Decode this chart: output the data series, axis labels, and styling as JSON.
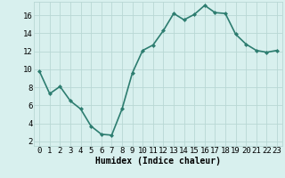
{
  "x": [
    0,
    1,
    2,
    3,
    4,
    5,
    6,
    7,
    8,
    9,
    10,
    11,
    12,
    13,
    14,
    15,
    16,
    17,
    18,
    19,
    20,
    21,
    22,
    23
  ],
  "y": [
    9.8,
    7.3,
    8.1,
    6.5,
    5.6,
    3.7,
    2.8,
    2.7,
    5.6,
    9.6,
    12.1,
    12.7,
    14.3,
    16.2,
    15.5,
    16.1,
    17.1,
    16.3,
    16.2,
    13.9,
    12.8,
    12.1,
    11.9,
    12.1
  ],
  "line_color": "#2d7d70",
  "marker": "D",
  "marker_size": 2,
  "bg_color": "#d8f0ee",
  "grid_color": "#b8d8d4",
  "xlabel": "Humidex (Indice chaleur)",
  "ylabel_ticks": [
    2,
    4,
    6,
    8,
    10,
    12,
    14,
    16
  ],
  "xlim": [
    -0.5,
    23.5
  ],
  "ylim": [
    1.5,
    17.5
  ],
  "xlabel_fontsize": 7,
  "tick_fontsize": 6.5,
  "line_width": 1.2
}
